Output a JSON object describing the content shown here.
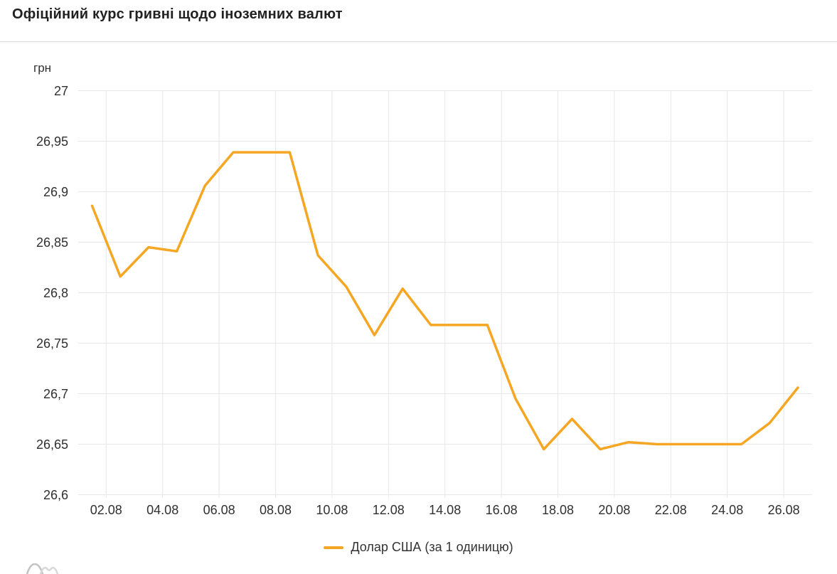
{
  "header": {
    "title": "Офіційний курс гривні щодо іноземних валют"
  },
  "chart_data": {
    "type": "line",
    "title": "Офіційний курс гривні щодо іноземних валют",
    "unit_label": "грн",
    "xlabel": "",
    "ylabel": "грн",
    "ylim": [
      26.6,
      27
    ],
    "grid": true,
    "legend_position": "bottom-center",
    "y_ticks": [
      {
        "value": 27,
        "label": "27"
      },
      {
        "value": 26.95,
        "label": "26,95"
      },
      {
        "value": 26.9,
        "label": "26,9"
      },
      {
        "value": 26.85,
        "label": "26,85"
      },
      {
        "value": 26.8,
        "label": "26,8"
      },
      {
        "value": 26.75,
        "label": "26,75"
      },
      {
        "value": 26.7,
        "label": "26,7"
      },
      {
        "value": 26.65,
        "label": "26,65"
      },
      {
        "value": 26.6,
        "label": "26,6"
      }
    ],
    "x_ticks": [
      {
        "day": 2,
        "label": "02.08"
      },
      {
        "day": 4,
        "label": "04.08"
      },
      {
        "day": 6,
        "label": "06.08"
      },
      {
        "day": 8,
        "label": "08.08"
      },
      {
        "day": 10,
        "label": "10.08"
      },
      {
        "day": 12,
        "label": "12.08"
      },
      {
        "day": 14,
        "label": "14.08"
      },
      {
        "day": 16,
        "label": "16.08"
      },
      {
        "day": 18,
        "label": "18.08"
      },
      {
        "day": 20,
        "label": "20.08"
      },
      {
        "day": 22,
        "label": "22.08"
      },
      {
        "day": 24,
        "label": "24.08"
      },
      {
        "day": 26,
        "label": "26.08"
      }
    ],
    "series": [
      {
        "name": "Долар США (за 1 одиницю)",
        "color": "#F5A623",
        "x": [
          "01.08",
          "02.08",
          "03.08",
          "04.08",
          "05.08",
          "06.08",
          "07.08",
          "08.08",
          "09.08",
          "10.08",
          "11.08",
          "12.08",
          "13.08",
          "14.08",
          "15.08",
          "16.08",
          "17.08",
          "18.08",
          "19.08",
          "20.08",
          "21.08",
          "22.08",
          "23.08",
          "24.08",
          "25.08",
          "26.08"
        ],
        "values": [
          26.886,
          26.816,
          26.845,
          26.841,
          26.906,
          26.939,
          26.939,
          26.939,
          26.837,
          26.806,
          26.758,
          26.804,
          26.768,
          26.768,
          26.768,
          26.695,
          26.645,
          26.675,
          26.645,
          26.652,
          26.65,
          26.65,
          26.65,
          26.65,
          26.671,
          26.706
        ]
      }
    ]
  },
  "colors": {
    "accent": "#F5A623",
    "grid": "#E7E7E7",
    "axis_text": "#303030",
    "title_text": "#212121",
    "divider": "#DBDBDB",
    "watermark_dark": "#C3C3C3",
    "watermark_light": "#D9D9D9"
  },
  "footer": {
    "watermark_icon": "wave-curves-logo"
  }
}
